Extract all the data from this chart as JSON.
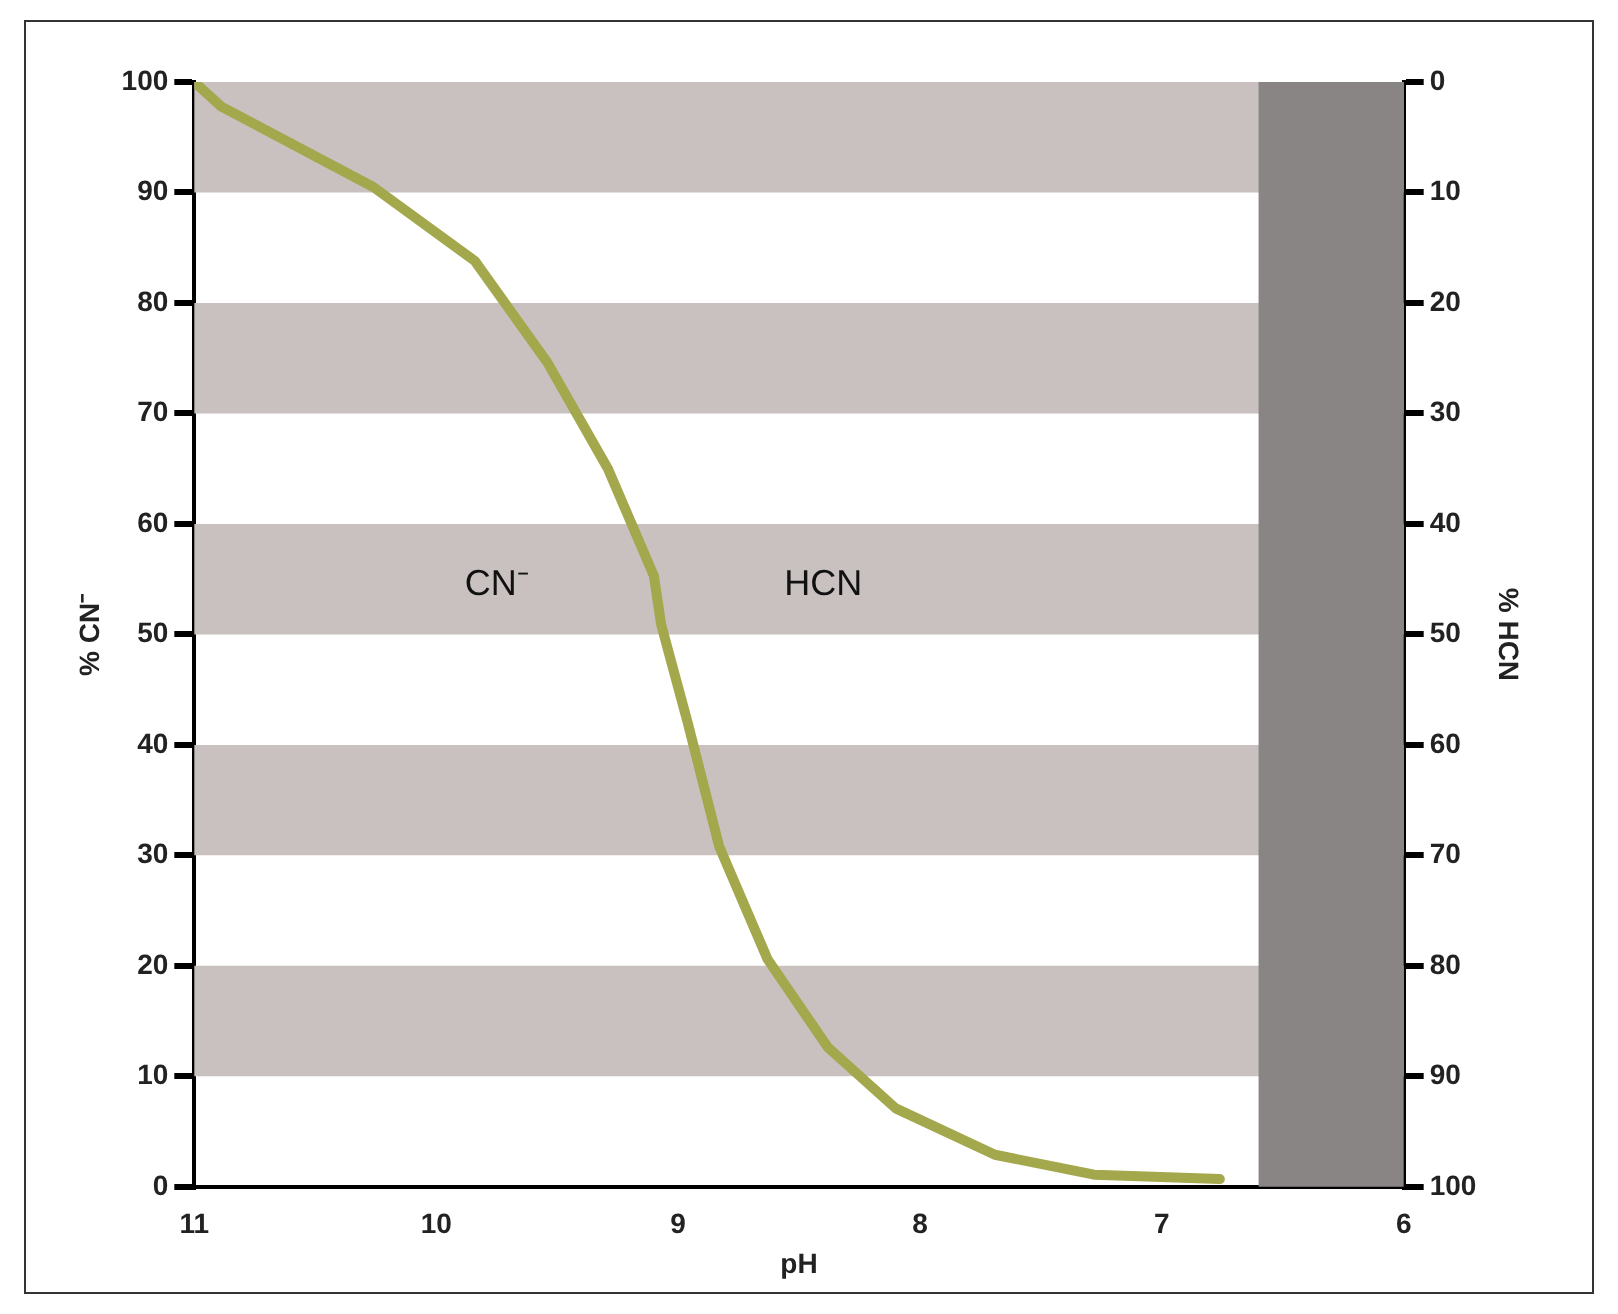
{
  "chart_data": {
    "type": "line",
    "xlabel": "pH",
    "ylabel": "% CN⁻",
    "y2label": "% HCN",
    "x": [
      11,
      10.89,
      10.26,
      9.84,
      9.54,
      9.29,
      9.1,
      9.07,
      8.96,
      8.83,
      8.63,
      8.38,
      8.1,
      7.69,
      7.28,
      6.76
    ],
    "series": [
      {
        "color": "#a4a84c",
        "values": [
          100,
          97.8,
          90.5,
          83.8,
          74.6,
          65,
          55.3,
          50.9,
          42,
          30.8,
          20.6,
          12.6,
          7.1,
          2.9,
          1.1,
          0.7
        ]
      }
    ],
    "xlim": [
      11,
      6
    ],
    "xticks": [
      11,
      10,
      9,
      8,
      7,
      6
    ],
    "ylim": [
      0,
      100
    ],
    "yticks": [
      0,
      10,
      20,
      30,
      40,
      50,
      60,
      70,
      80,
      90,
      100
    ],
    "y2lim": [
      100,
      0
    ],
    "y2ticks": [
      0,
      10,
      20,
      30,
      40,
      50,
      60,
      70,
      80,
      90,
      100
    ],
    "bands": [
      {
        "axis": "y",
        "from": 90,
        "to": 100,
        "color": "#c9c0c0"
      },
      {
        "axis": "y",
        "from": 70,
        "to": 80,
        "color": "#c9c0c0"
      },
      {
        "axis": "y",
        "from": 50,
        "to": 60,
        "color": "#c9c0c0"
      },
      {
        "axis": "y",
        "from": 30,
        "to": 40,
        "color": "#c9c0c0"
      },
      {
        "axis": "y",
        "from": 10,
        "to": 20,
        "color": "#c9c0c0"
      },
      {
        "axis": "x",
        "from": 6.6,
        "to": 6,
        "color": "#8a8585"
      }
    ],
    "annotations": [
      "CN⁻",
      "HCN"
    ],
    "grid": false,
    "legend": false,
    "marker": "none",
    "line_style": "solid"
  }
}
